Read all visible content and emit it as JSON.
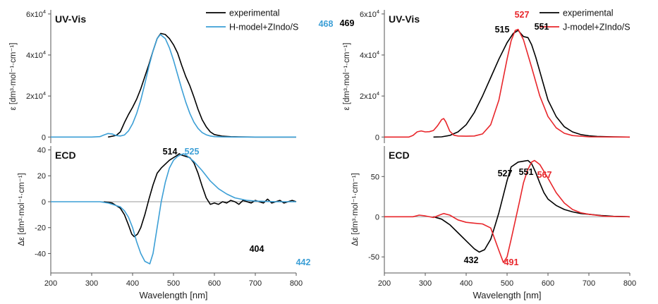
{
  "chart_data": [
    {
      "type": "line",
      "panel": "left-top",
      "title": "UV-Vis",
      "xlabel": "",
      "ylabel": "ε [dm³·mol⁻¹·cm⁻¹]",
      "xlim": [
        200,
        800
      ],
      "ylim": [
        -3000,
        62000
      ],
      "yticks": [
        {
          "value": 0,
          "label": "0"
        },
        {
          "value": 20000,
          "label": "2x10⁴"
        },
        {
          "value": 40000,
          "label": "4x10⁴"
        },
        {
          "value": 60000,
          "label": "6x10⁴"
        }
      ],
      "legend_position": "top-right",
      "series": [
        {
          "name": "experimental",
          "color": "#000000",
          "x": [
            340,
            360,
            370,
            380,
            390,
            400,
            410,
            420,
            430,
            440,
            450,
            460,
            469,
            480,
            490,
            500,
            510,
            520,
            530,
            540,
            550,
            560,
            570,
            580,
            590,
            600,
            620,
            640,
            660,
            700,
            800
          ],
          "y": [
            0,
            800,
            2500,
            7000,
            11000,
            14500,
            18500,
            23500,
            29500,
            35500,
            42000,
            48000,
            50500,
            50000,
            48000,
            45000,
            41000,
            35000,
            29500,
            25000,
            19500,
            13500,
            8500,
            5000,
            2500,
            1200,
            400,
            150,
            50,
            0,
            0
          ]
        },
        {
          "name": "H-model+ZIndo/S",
          "color": "#3c9fd6",
          "x": [
            200,
            300,
            320,
            330,
            340,
            350,
            360,
            370,
            380,
            390,
            400,
            410,
            420,
            430,
            440,
            450,
            460,
            468,
            480,
            490,
            500,
            510,
            520,
            530,
            540,
            550,
            560,
            570,
            580,
            590,
            600,
            620,
            650,
            800
          ],
          "y": [
            0,
            0,
            200,
            1000,
            1700,
            1500,
            700,
            500,
            1000,
            3000,
            6500,
            11500,
            18000,
            26000,
            34500,
            42000,
            48000,
            50000,
            48000,
            43500,
            37500,
            30500,
            23500,
            17000,
            11500,
            7200,
            4200,
            2200,
            1100,
            500,
            200,
            50,
            0,
            0
          ]
        }
      ],
      "annotations": [
        {
          "x": 469,
          "label": "469",
          "color": "#000000"
        },
        {
          "x": 468,
          "label": "468",
          "color": "#3c9fd6"
        }
      ]
    },
    {
      "type": "line",
      "panel": "left-bottom",
      "title": "ECD",
      "xlabel": "Wavelength [nm]",
      "ylabel": "Δε [dm³·mol⁻¹·cm⁻¹]",
      "xlim": [
        200,
        800
      ],
      "ylim": [
        -55,
        43
      ],
      "xticks": [
        200,
        300,
        400,
        500,
        600,
        700,
        800
      ],
      "yticks": [
        {
          "value": -40,
          "label": "-40"
        },
        {
          "value": -20,
          "label": "-20"
        },
        {
          "value": 0,
          "label": "0"
        },
        {
          "value": 20,
          "label": "20"
        },
        {
          "value": 40,
          "label": "40"
        }
      ],
      "series": [
        {
          "name": "experimental",
          "color": "#000000",
          "x": [
            330,
            350,
            360,
            370,
            380,
            390,
            398,
            404,
            412,
            420,
            430,
            440,
            450,
            460,
            470,
            480,
            490,
            500,
            510,
            514,
            520,
            530,
            540,
            550,
            560,
            570,
            580,
            590,
            600,
            610,
            620,
            630,
            640,
            650,
            660,
            670,
            680,
            690,
            700,
            710,
            720,
            730,
            740,
            750,
            760,
            770,
            780,
            790,
            800
          ],
          "y": [
            0,
            -1,
            -3,
            -5,
            -10,
            -18,
            -25,
            -27,
            -25,
            -20,
            -10,
            2,
            13,
            22,
            26,
            29,
            32,
            34,
            36,
            37,
            36,
            35,
            34,
            30,
            22,
            12,
            3,
            -2,
            -1,
            -2,
            0,
            -1,
            1,
            0,
            -2,
            1,
            0,
            -1,
            1,
            0,
            -1,
            2,
            -1,
            0,
            1,
            -1,
            0,
            1,
            0
          ]
        },
        {
          "name": "H-model+ZIndo/S",
          "color": "#3c9fd6",
          "x": [
            200,
            320,
            340,
            360,
            370,
            380,
            390,
            400,
            410,
            420,
            430,
            442,
            450,
            460,
            470,
            480,
            490,
            500,
            510,
            520,
            525,
            535,
            550,
            570,
            590,
            610,
            630,
            650,
            680,
            700,
            750,
            800
          ],
          "y": [
            0,
            0,
            -1,
            -3,
            -4,
            -7,
            -12,
            -20,
            -31,
            -40,
            -46,
            -48,
            -40,
            -20,
            0,
            15,
            26,
            32,
            35,
            36.5,
            37,
            35,
            31,
            24,
            16,
            10,
            6,
            3,
            1,
            0.5,
            0,
            0
          ]
        }
      ],
      "annotations": [
        {
          "x": 404,
          "label": "404",
          "color": "#000000"
        },
        {
          "x": 442,
          "label": "442",
          "color": "#3c9fd6"
        },
        {
          "x": 514,
          "label": "514",
          "color": "#000000"
        },
        {
          "x": 525,
          "label": "525",
          "color": "#3c9fd6"
        }
      ]
    },
    {
      "type": "line",
      "panel": "right-top",
      "title": "UV-Vis",
      "xlabel": "",
      "ylabel": "ε [dm³·mol⁻¹·cm⁻¹]",
      "xlim": [
        200,
        800
      ],
      "ylim": [
        -3000,
        62000
      ],
      "yticks": [
        {
          "value": 0,
          "label": "0"
        },
        {
          "value": 20000,
          "label": "2x10⁴"
        },
        {
          "value": 40000,
          "label": "4x10⁴"
        },
        {
          "value": 60000,
          "label": "6x10⁴"
        }
      ],
      "legend_position": "top-right",
      "series": [
        {
          "name": "experimental",
          "color": "#000000",
          "x": [
            320,
            340,
            360,
            380,
            400,
            420,
            440,
            460,
            480,
            500,
            515,
            527,
            540,
            551,
            560,
            570,
            580,
            590,
            600,
            620,
            640,
            660,
            680,
            700,
            720,
            760,
            800
          ],
          "y": [
            0,
            100,
            800,
            2500,
            6000,
            12000,
            20000,
            29000,
            38000,
            46000,
            50500,
            52000,
            49000,
            48500,
            45000,
            39000,
            32000,
            25000,
            18000,
            10000,
            5000,
            2500,
            1200,
            600,
            300,
            80,
            0
          ]
        },
        {
          "name": "J-model+ZIndo/S",
          "color": "#e8262b",
          "x": [
            200,
            260,
            270,
            280,
            290,
            300,
            310,
            320,
            330,
            340,
            345,
            350,
            360,
            370,
            380,
            400,
            420,
            440,
            460,
            480,
            500,
            510,
            520,
            527,
            540,
            560,
            580,
            600,
            620,
            640,
            660,
            700,
            800
          ],
          "y": [
            0,
            0,
            800,
            2500,
            3000,
            2500,
            2600,
            3200,
            5500,
            8500,
            9000,
            7500,
            2800,
            900,
            500,
            400,
            500,
            1500,
            6000,
            18000,
            38000,
            47000,
            52000,
            52500,
            47500,
            34000,
            20000,
            10000,
            4500,
            1800,
            700,
            100,
            0
          ]
        }
      ],
      "annotations": [
        {
          "x": 515,
          "label": "515",
          "color": "#000000"
        },
        {
          "x": 527,
          "label": "527",
          "color": "#e8262b"
        },
        {
          "x": 551,
          "label": "551",
          "color": "#000000"
        }
      ]
    },
    {
      "type": "line",
      "panel": "right-bottom",
      "title": "ECD",
      "xlabel": "Wavelength [nm]",
      "ylabel": "Δε [dm³·mol⁻¹·cm⁻¹]",
      "xlim": [
        200,
        800
      ],
      "ylim": [
        -70,
        88
      ],
      "xticks": [
        200,
        300,
        400,
        500,
        600,
        700,
        800
      ],
      "yticks": [
        {
          "value": -50,
          "label": "-50"
        },
        {
          "value": 0,
          "label": "0"
        },
        {
          "value": 50,
          "label": "50"
        }
      ],
      "series": [
        {
          "name": "experimental",
          "color": "#000000",
          "x": [
            320,
            340,
            360,
            380,
            400,
            420,
            432,
            445,
            460,
            470,
            480,
            490,
            500,
            510,
            527,
            540,
            551,
            560,
            570,
            580,
            590,
            600,
            620,
            640,
            660,
            680,
            700,
            730,
            760,
            800
          ],
          "y": [
            0,
            -3,
            -10,
            -20,
            -30,
            -40,
            -44,
            -41,
            -28,
            -12,
            5,
            25,
            45,
            62,
            68,
            69,
            70,
            66,
            55,
            42,
            30,
            22,
            14,
            9,
            6,
            4,
            3,
            1.5,
            0.5,
            0
          ]
        },
        {
          "name": "J-model+ZIndo/S",
          "color": "#e8262b",
          "x": [
            200,
            270,
            285,
            300,
            320,
            340,
            345,
            360,
            380,
            400,
            420,
            440,
            460,
            480,
            491,
            500,
            510,
            520,
            530,
            540,
            550,
            560,
            567,
            580,
            600,
            620,
            640,
            660,
            680,
            700,
            740,
            800
          ],
          "y": [
            0,
            0,
            2,
            1,
            -1,
            3,
            4,
            2,
            -4,
            -7,
            -8,
            -9,
            -14,
            -42,
            -57,
            -50,
            -28,
            -5,
            18,
            42,
            58,
            68,
            70,
            65,
            48,
            30,
            17,
            9,
            5,
            3,
            0.5,
            0
          ]
        }
      ],
      "annotations": [
        {
          "x": 432,
          "label": "432",
          "color": "#000000"
        },
        {
          "x": 491,
          "label": "491",
          "color": "#e8262b"
        },
        {
          "x": 527,
          "label": "527",
          "color": "#000000"
        },
        {
          "x": 551,
          "label": "551",
          "color": "#000000"
        },
        {
          "x": 567,
          "label": "567",
          "color": "#e8262b"
        }
      ]
    }
  ]
}
